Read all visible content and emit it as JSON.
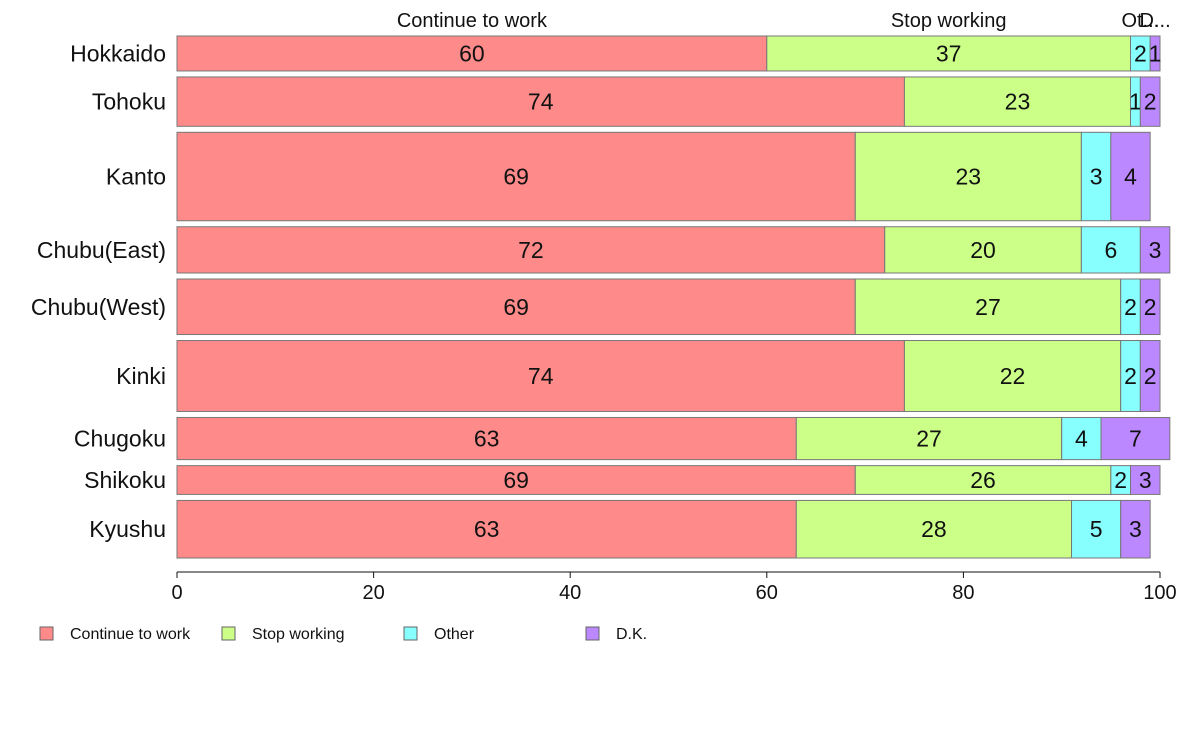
{
  "chart_data": {
    "type": "bar",
    "orientation": "horizontal",
    "stacked": true,
    "categories": [
      "Hokkaido",
      "Tohoku",
      "Kanto",
      "Chubu(East)",
      "Chubu(West)",
      "Kinki",
      "Chugoku",
      "Shikoku",
      "Kyushu"
    ],
    "series": [
      {
        "name": "Continue to work",
        "color": "#ff8a8a",
        "values": [
          60,
          74,
          69,
          72,
          69,
          74,
          63,
          69,
          63
        ]
      },
      {
        "name": "Stop working",
        "color": "#ccff88",
        "values": [
          37,
          23,
          23,
          20,
          27,
          22,
          27,
          26,
          28
        ]
      },
      {
        "name": "Other",
        "color": "#88ffff",
        "values": [
          2,
          1,
          3,
          6,
          2,
          2,
          4,
          2,
          5
        ]
      },
      {
        "name": "D.K.",
        "color": "#bb88ff",
        "values": [
          1,
          2,
          4,
          3,
          2,
          2,
          7,
          3,
          3
        ]
      }
    ],
    "top_labels": [
      "Continue to work",
      "Stop working",
      "Ot...",
      "D..."
    ],
    "x_ticks": [
      "0",
      "20",
      "40",
      "60",
      "80",
      "100"
    ],
    "xlim": [
      0,
      100
    ],
    "grid": false,
    "legend_position": "bottom-left"
  }
}
